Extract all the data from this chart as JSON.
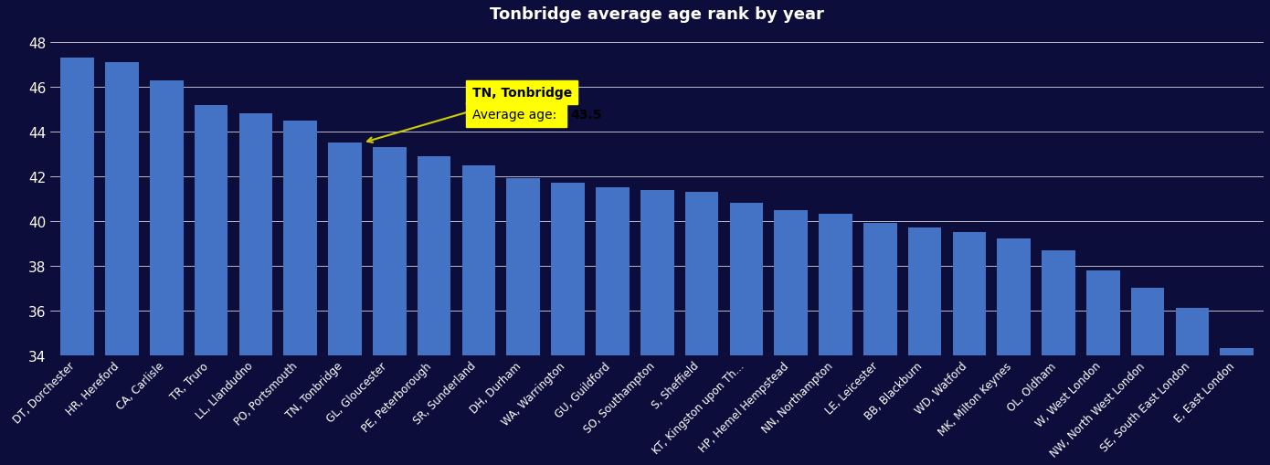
{
  "title": "Tonbridge average age rank by year",
  "background_color": "#0d0d3b",
  "bar_color": "#4472c4",
  "text_color": "#ffffff",
  "ylim": [
    34,
    48.5
  ],
  "yticks": [
    34,
    36,
    38,
    40,
    42,
    44,
    46,
    48
  ],
  "categories": [
    "DT, Dorchester",
    "HR, Hereford",
    "CA, Carlisle",
    "TR, Truro",
    "LL, Llandudno",
    "PO, Portsmouth",
    "TN, Tonbridge",
    "GL, Gloucester",
    "PE, Peterborough",
    "SR, Sunderland",
    "DH, Durham",
    "WA, Warrington",
    "GU, Guildford",
    "SO, Southampton",
    "S, Sheffield",
    "KT, Kingston upon Th...",
    "HP, Hemel Hempstead",
    "NN, Northampton",
    "LE, Leicester",
    "BB, Blackburn",
    "WD, Watford",
    "MK, Milton Keynes",
    "OL, Oldham",
    "W, West London",
    "NW, North West London",
    "SE, South East London",
    "E, East London"
  ],
  "values": [
    47.3,
    47.1,
    46.3,
    45.2,
    44.8,
    44.5,
    43.5,
    43.3,
    42.9,
    42.5,
    41.9,
    41.7,
    41.5,
    41.4,
    41.3,
    40.8,
    40.5,
    40.3,
    39.9,
    39.7,
    39.5,
    39.2,
    38.7,
    37.8,
    37.0,
    36.1,
    34.3
  ],
  "highlight_index": 6,
  "annotation_bg": "#ffff00",
  "annotation_text_color": "#000000",
  "annotation_title": "TN, Tonbridge",
  "annotation_label": "Average age: ",
  "annotation_value": "43.5"
}
